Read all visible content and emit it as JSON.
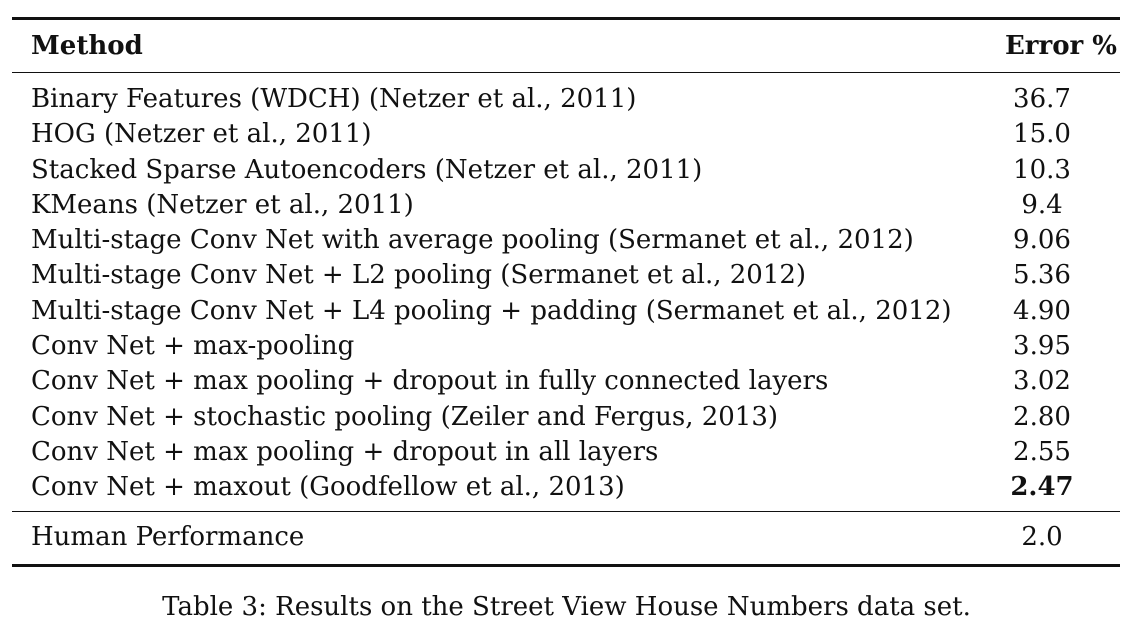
{
  "table": {
    "header": {
      "method": "Method",
      "error": "Error %"
    },
    "rows": [
      {
        "method": "Binary Features (WDCH) (Netzer et al., 2011)",
        "error": "36.7"
      },
      {
        "method": "HOG (Netzer et al., 2011)",
        "error": "15.0"
      },
      {
        "method": "Stacked Sparse Autoencoders (Netzer et al., 2011)",
        "error": "10.3"
      },
      {
        "method": "KMeans (Netzer et al., 2011)",
        "error": "9.4"
      },
      {
        "method": "Multi-stage Conv Net with average pooling (Sermanet et al., 2012)",
        "error": "9.06"
      },
      {
        "method": "Multi-stage Conv Net + L2 pooling (Sermanet et al., 2012)",
        "error": "5.36"
      },
      {
        "method": "Multi-stage Conv Net + L4 pooling + padding (Sermanet et al., 2012)",
        "error": "4.90"
      },
      {
        "method": "Conv Net + max-pooling",
        "error": "3.95"
      },
      {
        "method": "Conv Net + max pooling + dropout in fully connected layers",
        "error": "3.02"
      },
      {
        "method": "Conv Net + stochastic pooling (Zeiler and Fergus, 2013)",
        "error": "2.80"
      },
      {
        "method": "Conv Net + max pooling + dropout in all layers",
        "error": "2.55"
      },
      {
        "method": "Conv Net + maxout (Goodfellow et al., 2013)",
        "error": "2.47"
      }
    ],
    "human": {
      "method": "Human Performance",
      "error": "2.0"
    }
  },
  "caption": "Table 3: Results on the Street View House Numbers data set."
}
